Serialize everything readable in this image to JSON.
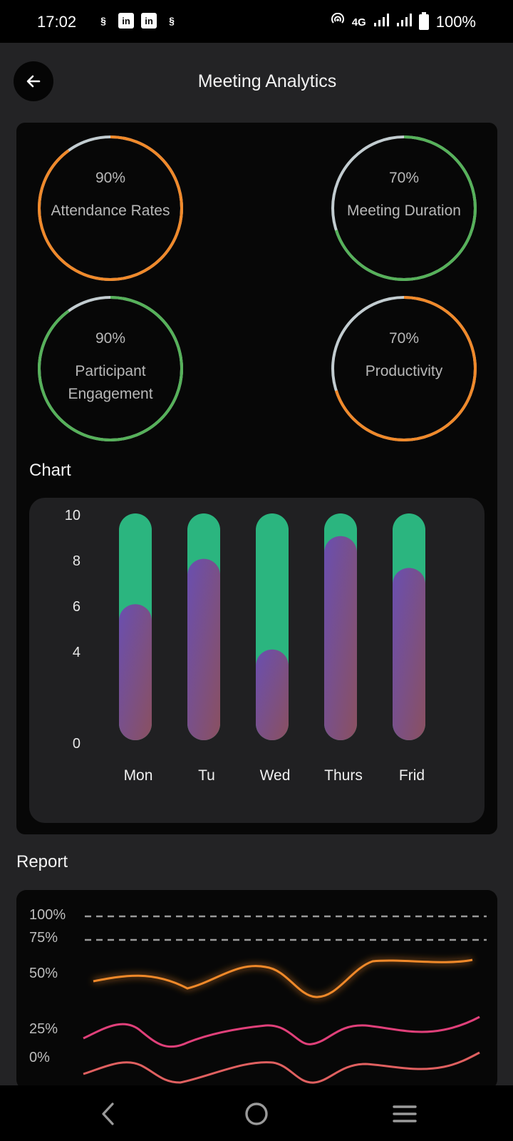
{
  "status_bar": {
    "time": "17:02",
    "network": "4G",
    "battery": "100%",
    "left_icons": [
      "s-app-icon",
      "linkedin-icon",
      "linkedin-icon",
      "s-app-icon"
    ]
  },
  "header": {
    "title": "Meeting Analytics",
    "back_icon": "arrow-left-icon"
  },
  "stats": [
    {
      "value": "90%",
      "label": "Attendance Rates",
      "fraction": 0.9,
      "color": "#F0892A"
    },
    {
      "value": "70%",
      "label": "Meeting Duration",
      "fraction": 0.7,
      "color": "#56B15A"
    },
    {
      "value": "90%",
      "label": "Participant Engagement",
      "fraction": 0.9,
      "color": "#56B15A"
    },
    {
      "value": "70%",
      "label": "Productivity",
      "fraction": 0.7,
      "color": "#F0892A"
    }
  ],
  "chart_section": {
    "title": "Chart"
  },
  "chart_data": {
    "type": "bar",
    "categories": [
      "Mon",
      "Tu",
      "Wed",
      "Thurs",
      "Frid"
    ],
    "y_ticks": [
      "10",
      "8",
      "6",
      "4",
      "0"
    ],
    "ylim": [
      0,
      10
    ],
    "series": [
      {
        "values": [
          10,
          10,
          10,
          10,
          10
        ],
        "color": "#2BB57F"
      },
      {
        "values": [
          6,
          8,
          4,
          9,
          7.6
        ],
        "color": "#6B4FA8"
      }
    ]
  },
  "report_section": {
    "title": "Report",
    "y_labels": [
      "100%",
      "75%",
      "50%",
      "25%",
      "0%"
    ],
    "line_colors": [
      "#F0892A",
      "#E0407A",
      "#E06060"
    ]
  },
  "nav_bar": {
    "icons": [
      "back-nav-icon",
      "home-nav-icon",
      "menu-nav-icon"
    ]
  }
}
